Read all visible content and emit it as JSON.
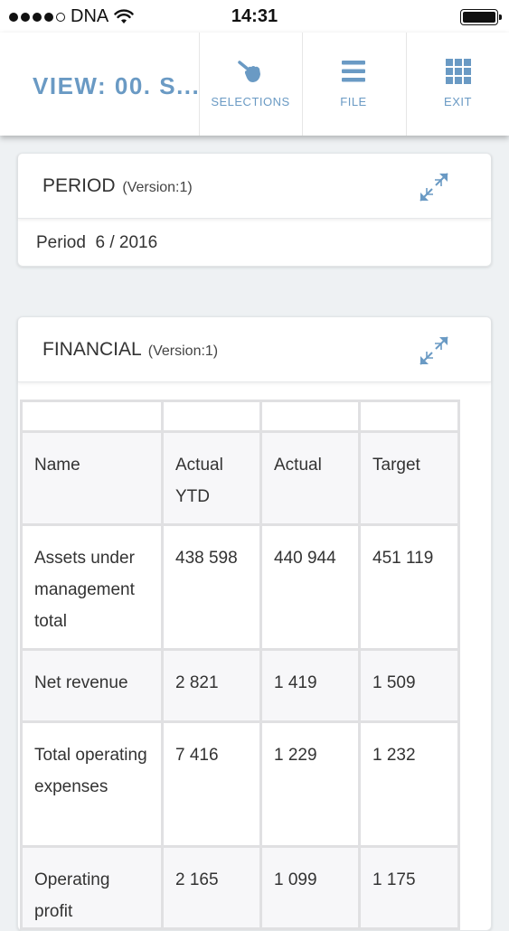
{
  "status_bar": {
    "carrier": "DNA",
    "time": "14:31"
  },
  "header": {
    "view_title": "VIEW: 00. S...",
    "buttons": [
      {
        "label": "SELECTIONS",
        "icon": "hand-pointer-icon"
      },
      {
        "label": "FILE",
        "icon": "menu-icon"
      },
      {
        "label": "EXIT",
        "icon": "grid-icon"
      }
    ]
  },
  "colors": {
    "accent": "#6a9ac4",
    "background": "#eef1f3"
  },
  "period_card": {
    "title": "PERIOD",
    "version": "(Version:1)",
    "body": "Period  6 / 2016"
  },
  "financial_card": {
    "title": "FINANCIAL",
    "version": "(Version:1)",
    "table": {
      "headers": [
        "Name",
        "Actual YTD",
        "Actual",
        "Target"
      ],
      "rows": [
        {
          "name": "Assets under management total",
          "actual_ytd": "438 598",
          "actual": "440 944",
          "target": "451 119",
          "link": false
        },
        {
          "name": "Net revenue",
          "actual_ytd": "2 821",
          "actual": "1 419",
          "target": "1 509",
          "link": true
        },
        {
          "name": "Total operating expenses",
          "actual_ytd": "7 416",
          "actual": "1 229",
          "target": "1 232",
          "link": false
        },
        {
          "name": "Operating profit",
          "actual_ytd": "2 165",
          "actual": "1 099",
          "target": "1 175",
          "link": true
        }
      ]
    }
  }
}
